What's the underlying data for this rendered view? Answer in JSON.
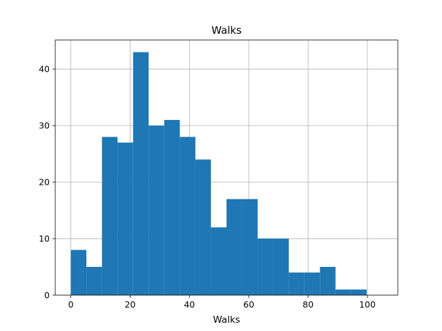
{
  "chart_data": {
    "type": "bar",
    "title": "Walks",
    "xlabel": "Walks",
    "ylabel": "",
    "bar_color": "#1f77b4",
    "grid": true,
    "xlim": [
      -5.25,
      110.25
    ],
    "ylim": [
      0,
      45.15
    ],
    "xticks": [
      0,
      20,
      40,
      60,
      80,
      100
    ],
    "yticks": [
      0,
      10,
      20,
      30,
      40
    ],
    "bin_edges": [
      0,
      5.25,
      10.5,
      15.75,
      21,
      26.25,
      31.5,
      36.75,
      42,
      47.25,
      52.5,
      57.75,
      63,
      68.25,
      73.5,
      78.75,
      84,
      89.25,
      94.5,
      99.75,
      105
    ],
    "values": [
      8,
      5,
      28,
      27,
      43,
      30,
      31,
      28,
      24,
      12,
      17,
      17,
      10,
      10,
      4,
      4,
      5,
      1,
      1,
      0
    ]
  }
}
